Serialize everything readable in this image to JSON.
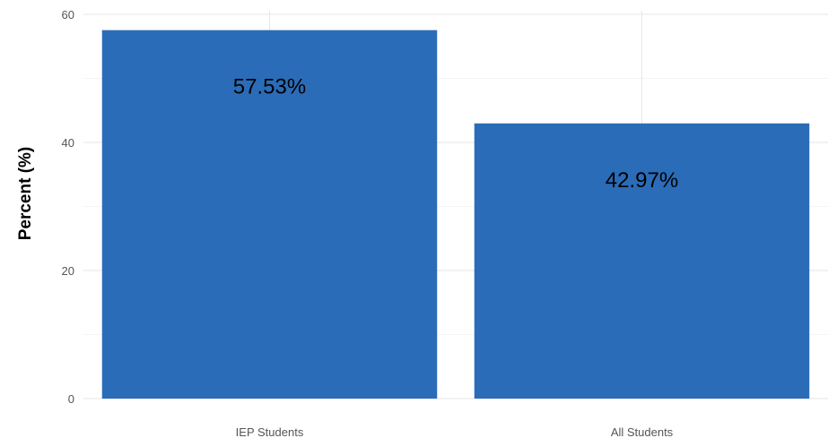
{
  "chart_data": {
    "type": "bar",
    "title": "",
    "xlabel": "",
    "ylabel": "Percent (%)",
    "categories": [
      "IEP Students",
      "All Students"
    ],
    "values": [
      57.53,
      42.97
    ],
    "data_labels": [
      "57.53%",
      "42.97%"
    ],
    "ylim": [
      0,
      60
    ],
    "yticks": [
      0,
      20,
      40,
      60
    ],
    "grid": true,
    "legend": "none",
    "bar_color": "#2b6cb8"
  }
}
